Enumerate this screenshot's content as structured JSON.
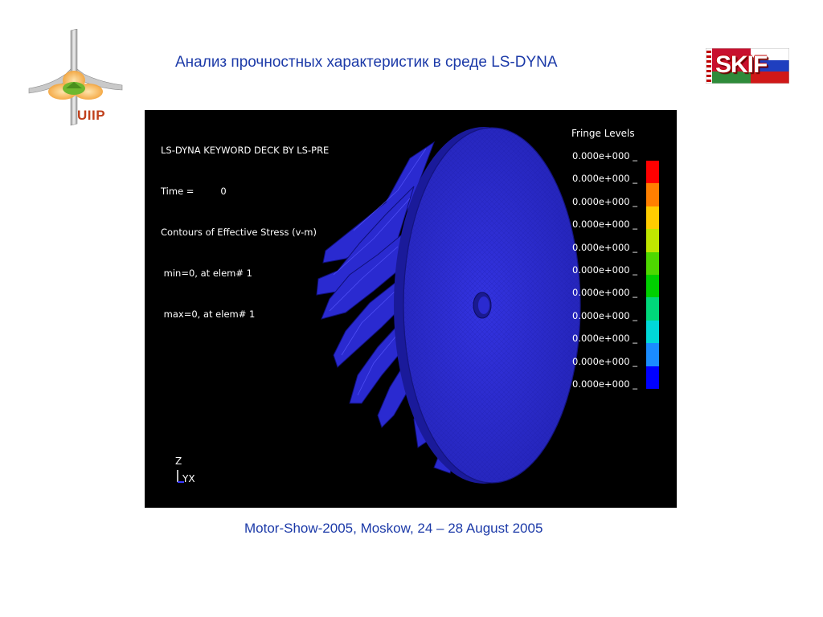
{
  "slide": {
    "title": "Анализ прочностных характеристик в среде LS-DYNA",
    "footer": "Motor-Show-2005, Moskow, 24 – 28 August 2005"
  },
  "logos": {
    "left": {
      "text": "UIIP",
      "icon": "uiip-logo-icon"
    },
    "right": {
      "text": "SKIF",
      "icon": "skif-flag-logo-icon"
    }
  },
  "viewport": {
    "header_lines": [
      "LS-DYNA KEYWORD DECK BY LS-PRE",
      "Time =         0",
      "Contours of Effective Stress (v-m)",
      " min=0, at elem# 1",
      " max=0, at elem# 1"
    ],
    "fringe_title": "Fringe Levels",
    "fringe_levels": [
      "0.000e+000 _",
      "0.000e+000 _",
      "0.000e+000 _",
      "0.000e+000 _",
      "0.000e+000 _",
      "0.000e+000 _",
      "0.000e+000 _",
      "0.000e+000 _",
      "0.000e+000 _",
      "0.000e+000 _",
      "0.000e+000 _"
    ],
    "fringe_colors": [
      "#ff0000",
      "#ff7f00",
      "#ffcc00",
      "#bfe600",
      "#4ed800",
      "#00d000",
      "#00d87a",
      "#00d8d8",
      "#1a8cff",
      "#0000ff"
    ],
    "axis_labels": {
      "z": "Z",
      "yx": "YX"
    },
    "model_color": "#2b2bd6"
  }
}
